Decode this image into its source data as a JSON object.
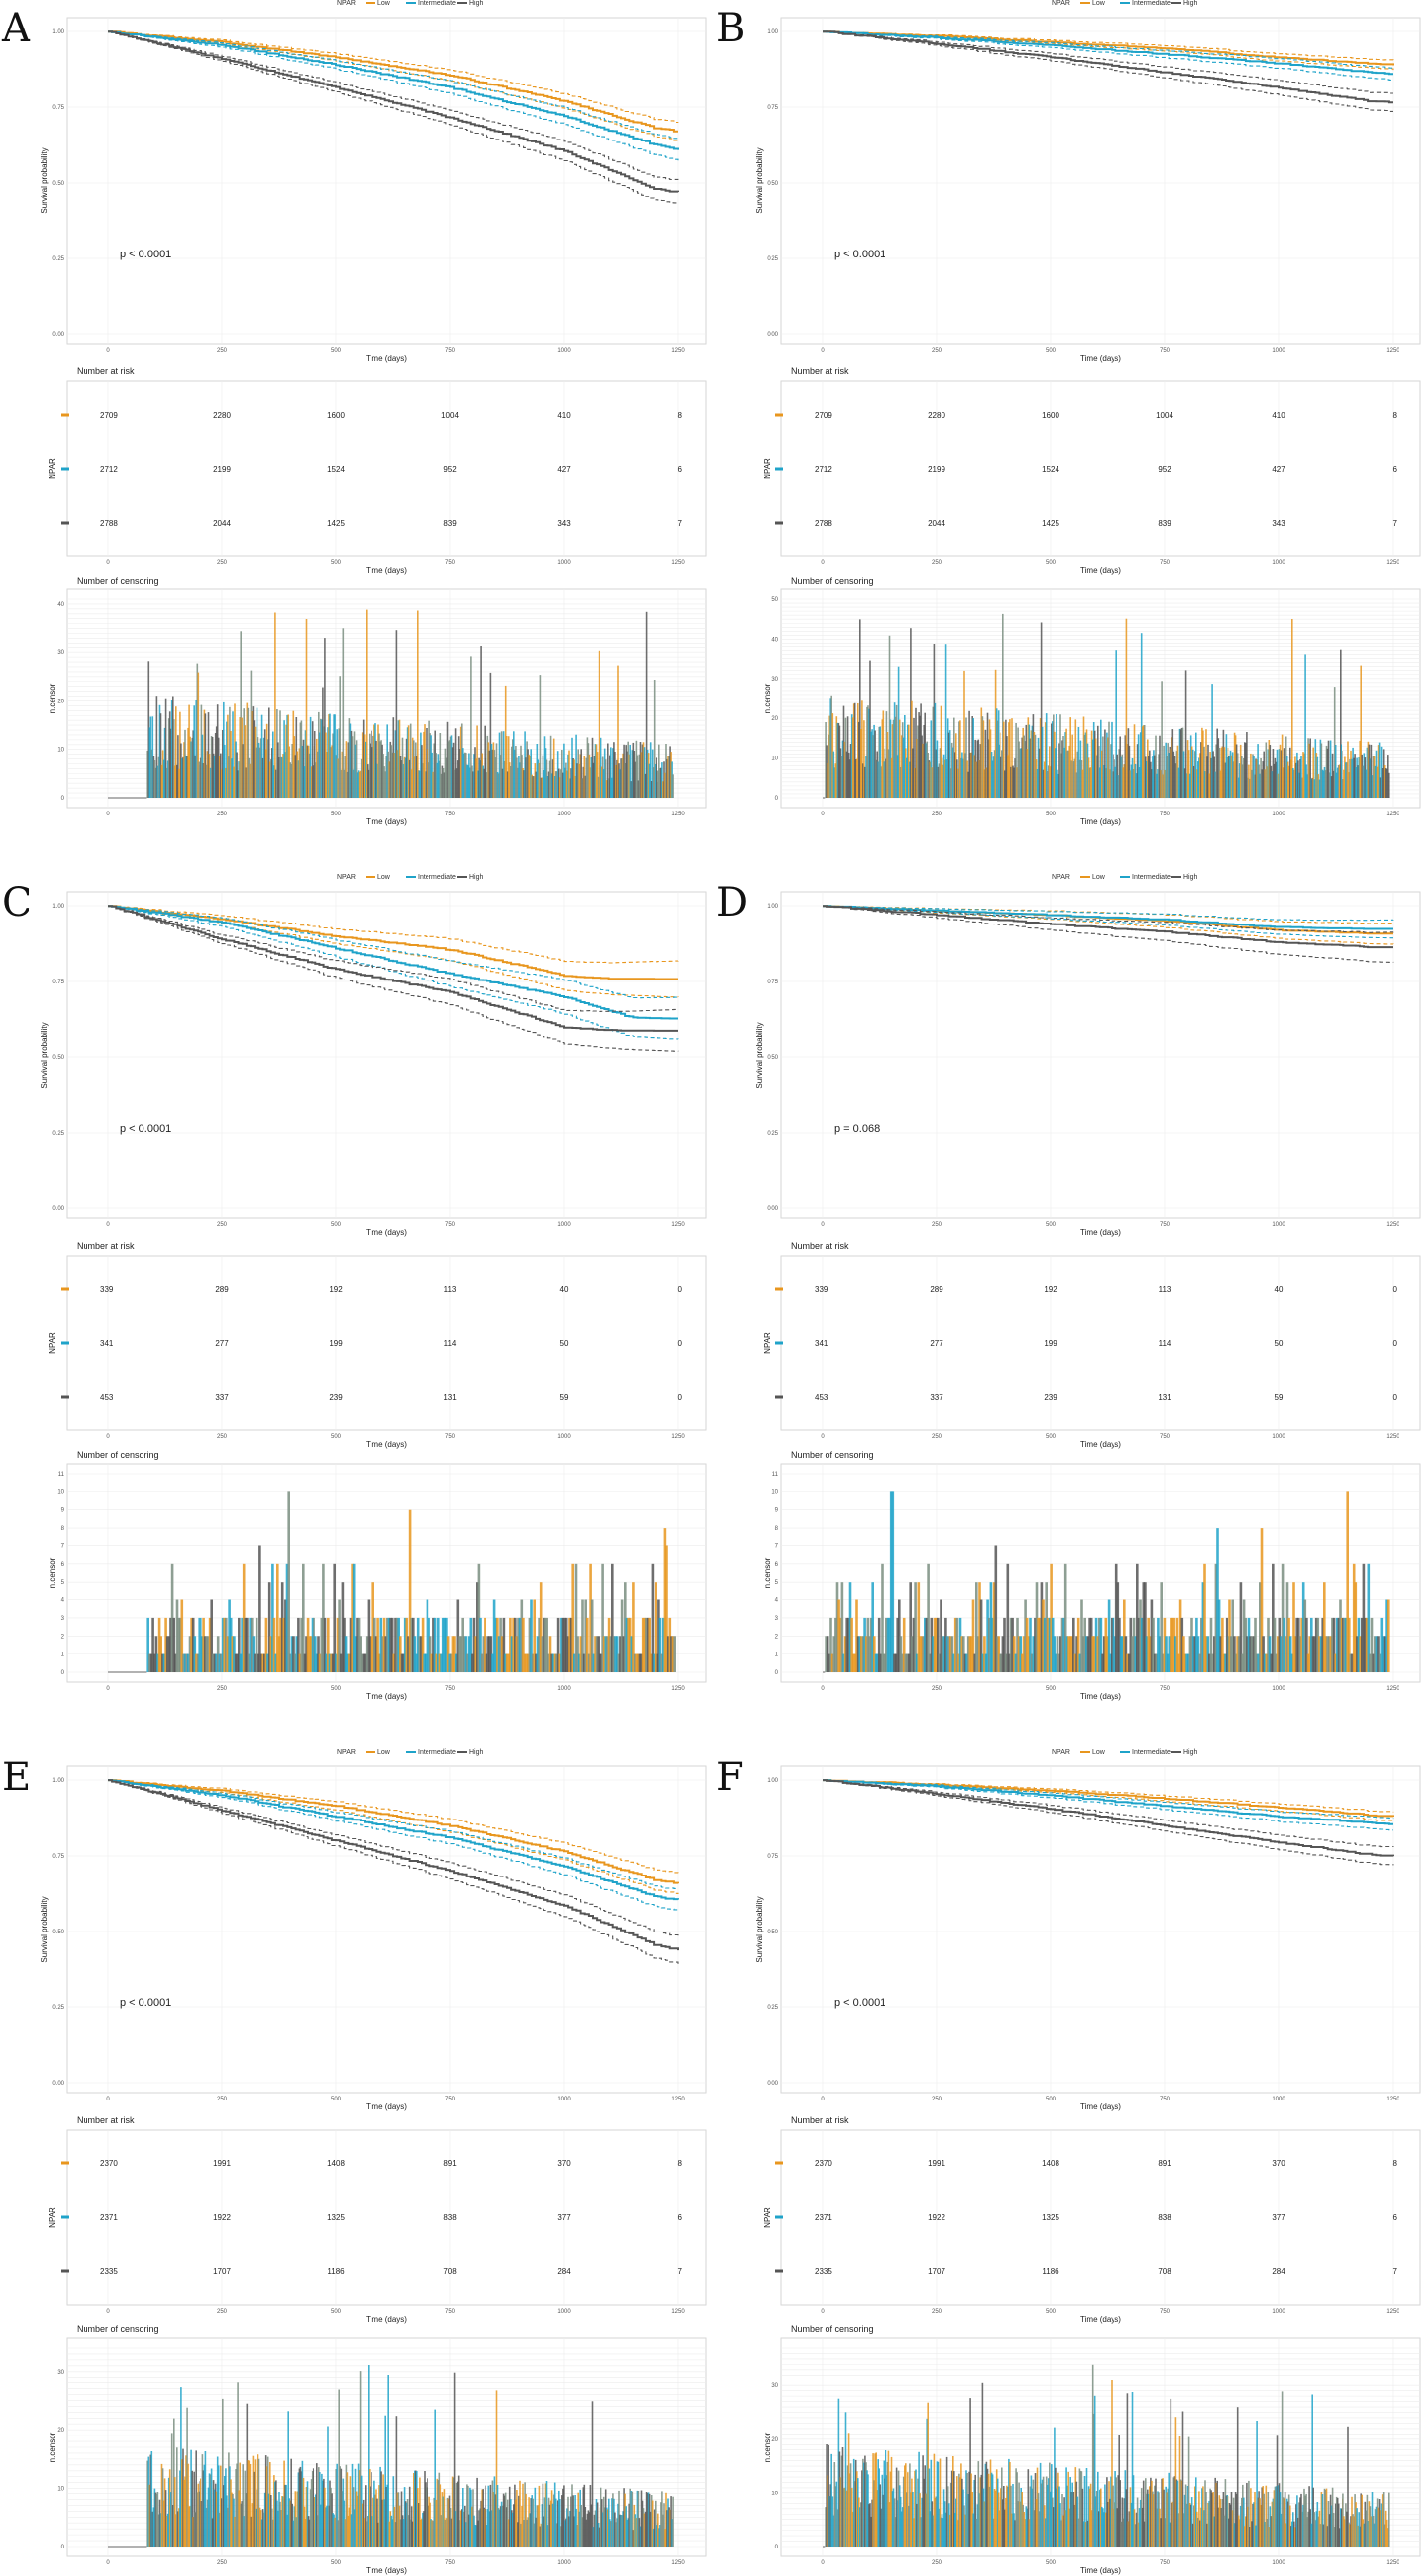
{
  "colors": {
    "low": "#E8961E",
    "intermediate": "#1FA3C9",
    "high": "#555555",
    "grey_bar": "#7A8E80"
  },
  "chart_data": [
    {
      "panel": "A",
      "type": "line",
      "legend": {
        "title": "NPAR",
        "entries": [
          "Low",
          "Intermediate",
          "High"
        ]
      },
      "xlabel": "Time (days)",
      "ylabel": "Survival probability",
      "xticks": [
        "0",
        "250",
        "500",
        "750",
        "1000",
        "1250"
      ],
      "yticks": [
        "0.00",
        "0.25",
        "0.50",
        "0.75",
        "1.00"
      ],
      "xlim": [
        0,
        1250
      ],
      "ylim": [
        0,
        1
      ],
      "pvalue": "p < 0.0001",
      "series": [
        {
          "name": "Low",
          "x": [
            0,
            250,
            500,
            750,
            1000,
            1200,
            1250
          ],
          "y": [
            1.0,
            0.965,
            0.915,
            0.855,
            0.77,
            0.68,
            0.67
          ],
          "ci": 0.03
        },
        {
          "name": "Intermediate",
          "x": [
            0,
            250,
            500,
            750,
            1000,
            1200,
            1250
          ],
          "y": [
            1.0,
            0.955,
            0.89,
            0.815,
            0.72,
            0.625,
            0.61
          ],
          "ci": 0.035
        },
        {
          "name": "High",
          "x": [
            0,
            250,
            500,
            750,
            1000,
            1200,
            1250
          ],
          "y": [
            1.0,
            0.91,
            0.815,
            0.715,
            0.605,
            0.48,
            0.47
          ],
          "ci": 0.04
        }
      ],
      "risk_table": {
        "title": "Number at risk",
        "ylabel": "NPAR",
        "xlabel": "Time (days)",
        "rows": [
          [
            "2709",
            "2280",
            "1600",
            "1004",
            "410",
            "8"
          ],
          [
            "2712",
            "2199",
            "1524",
            "952",
            "427",
            "6"
          ],
          [
            "2788",
            "2044",
            "1425",
            "839",
            "343",
            "7"
          ]
        ]
      },
      "censoring": {
        "title": "Number of censoring",
        "ylabel": "n.censor",
        "xlabel": "Time (days)",
        "ymax": 41,
        "start": 85,
        "yticks": [
          "0",
          "10",
          "20",
          "30",
          "40"
        ]
      }
    },
    {
      "panel": "B",
      "type": "line",
      "legend": {
        "title": "NPAR",
        "entries": [
          "Low",
          "Intermediate",
          "High"
        ]
      },
      "xlabel": "Time (days)",
      "ylabel": "Survival probability",
      "xticks": [
        "0",
        "250",
        "500",
        "750",
        "1000",
        "1250"
      ],
      "yticks": [
        "0.00",
        "0.25",
        "0.50",
        "0.75",
        "1.00"
      ],
      "xlim": [
        0,
        1250
      ],
      "ylim": [
        0,
        1
      ],
      "pvalue": "p < 0.0001",
      "series": [
        {
          "name": "Low",
          "x": [
            0,
            250,
            500,
            750,
            1000,
            1200,
            1250
          ],
          "y": [
            1.0,
            0.985,
            0.965,
            0.945,
            0.915,
            0.895,
            0.89
          ],
          "ci": 0.015
        },
        {
          "name": "Intermediate",
          "x": [
            0,
            250,
            500,
            750,
            1000,
            1200,
            1250
          ],
          "y": [
            1.0,
            0.98,
            0.955,
            0.925,
            0.895,
            0.865,
            0.86
          ],
          "ci": 0.02
        },
        {
          "name": "High",
          "x": [
            0,
            250,
            500,
            750,
            1000,
            1200,
            1250
          ],
          "y": [
            1.0,
            0.96,
            0.915,
            0.865,
            0.815,
            0.77,
            0.765
          ],
          "ci": 0.03
        }
      ],
      "risk_table": {
        "title": "Number at risk",
        "ylabel": "NPAR",
        "xlabel": "Time (days)",
        "rows": [
          [
            "2709",
            "2280",
            "1600",
            "1004",
            "410",
            "8"
          ],
          [
            "2712",
            "2199",
            "1524",
            "952",
            "427",
            "6"
          ],
          [
            "2788",
            "2044",
            "1425",
            "839",
            "343",
            "7"
          ]
        ]
      },
      "censoring": {
        "title": "Number of censoring",
        "ylabel": "n.censor",
        "xlabel": "Time (days)",
        "ymax": 50,
        "start": 5,
        "yticks": [
          "0",
          "10",
          "20",
          "30",
          "40",
          "50"
        ]
      }
    },
    {
      "panel": "C",
      "type": "line",
      "legend": {
        "title": "NPAR",
        "entries": [
          "Low",
          "Intermediate",
          "High"
        ]
      },
      "xlabel": "Time (days)",
      "ylabel": "Survival probability",
      "xticks": [
        "0",
        "250",
        "500",
        "750",
        "1000",
        "1250"
      ],
      "yticks": [
        "0.00",
        "0.25",
        "0.50",
        "0.75",
        "1.00"
      ],
      "xlim": [
        0,
        1250
      ],
      "ylim": [
        0,
        1
      ],
      "pvalue": "p < 0.0001",
      "series": [
        {
          "name": "Low",
          "x": [
            0,
            250,
            500,
            750,
            1000,
            1100,
            1250
          ],
          "y": [
            1.0,
            0.955,
            0.9,
            0.855,
            0.77,
            0.76,
            0.76
          ],
          "ci": 0.06
        },
        {
          "name": "Intermediate",
          "x": [
            0,
            250,
            500,
            750,
            1000,
            1150,
            1250
          ],
          "y": [
            1.0,
            0.945,
            0.86,
            0.775,
            0.7,
            0.63,
            0.63
          ],
          "ci": 0.07
        },
        {
          "name": "High",
          "x": [
            0,
            250,
            500,
            750,
            1000,
            1100,
            1250
          ],
          "y": [
            1.0,
            0.89,
            0.79,
            0.715,
            0.6,
            0.59,
            0.59
          ],
          "ci": 0.07
        }
      ],
      "risk_table": {
        "title": "Number at risk",
        "ylabel": "NPAR",
        "xlabel": "Time (days)",
        "rows": [
          [
            "339",
            "289",
            "192",
            "113",
            "40",
            "0"
          ],
          [
            "341",
            "277",
            "199",
            "114",
            "50",
            "0"
          ],
          [
            "453",
            "337",
            "239",
            "131",
            "59",
            "0"
          ]
        ]
      },
      "censoring": {
        "title": "Number of censoring",
        "ylabel": "n.censor",
        "xlabel": "Time (days)",
        "ymax": 11,
        "start": 85,
        "yticks": [
          "0",
          "1",
          "2",
          "3",
          "4",
          "5",
          "6",
          "7",
          "8",
          "9",
          "10",
          "11"
        ]
      }
    },
    {
      "panel": "D",
      "type": "line",
      "legend": {
        "title": "NPAR",
        "entries": [
          "Low",
          "Intermediate",
          "High"
        ]
      },
      "xlabel": "Time (days)",
      "ylabel": "Survival probability",
      "xticks": [
        "0",
        "250",
        "500",
        "750",
        "1000",
        "1250"
      ],
      "yticks": [
        "0.00",
        "0.25",
        "0.50",
        "0.75",
        "1.00"
      ],
      "xlim": [
        0,
        1250
      ],
      "ylim": [
        0,
        1
      ],
      "pvalue": "p = 0.068",
      "series": [
        {
          "name": "Low",
          "x": [
            0,
            250,
            500,
            750,
            1000,
            1200,
            1250
          ],
          "y": [
            1.0,
            0.985,
            0.97,
            0.95,
            0.92,
            0.91,
            0.91
          ],
          "ci": 0.035
        },
        {
          "name": "Intermediate",
          "x": [
            0,
            250,
            500,
            750,
            1000,
            1200,
            1250
          ],
          "y": [
            1.0,
            0.985,
            0.97,
            0.955,
            0.93,
            0.925,
            0.925
          ],
          "ci": 0.03
        },
        {
          "name": "High",
          "x": [
            0,
            250,
            500,
            750,
            1000,
            1200,
            1250
          ],
          "y": [
            1.0,
            0.97,
            0.94,
            0.915,
            0.88,
            0.865,
            0.865
          ],
          "ci": 0.05
        }
      ],
      "risk_table": {
        "title": "Number at risk",
        "ylabel": "NPAR",
        "xlabel": "Time (days)",
        "rows": [
          [
            "339",
            "289",
            "192",
            "113",
            "40",
            "0"
          ],
          [
            "341",
            "277",
            "199",
            "114",
            "50",
            "0"
          ],
          [
            "453",
            "337",
            "239",
            "131",
            "59",
            "0"
          ]
        ]
      },
      "censoring": {
        "title": "Number of censoring",
        "ylabel": "n.censor",
        "xlabel": "Time (days)",
        "ymax": 11,
        "start": 5,
        "yticks": [
          "0",
          "1",
          "2",
          "3",
          "4",
          "5",
          "6",
          "7",
          "8",
          "9",
          "10",
          "11"
        ]
      }
    },
    {
      "panel": "E",
      "type": "line",
      "legend": {
        "title": "NPAR",
        "entries": [
          "Low",
          "Intermediate",
          "High"
        ]
      },
      "xlabel": "Time (days)",
      "ylabel": "Survival probability",
      "xticks": [
        "0",
        "250",
        "500",
        "750",
        "1000",
        "1250"
      ],
      "yticks": [
        "0.00",
        "0.25",
        "0.50",
        "0.75",
        "1.00"
      ],
      "xlim": [
        0,
        1250
      ],
      "ylim": [
        0,
        1
      ],
      "pvalue": "p < 0.0001",
      "series": [
        {
          "name": "Low",
          "x": [
            0,
            250,
            500,
            750,
            1000,
            1200,
            1250
          ],
          "y": [
            1.0,
            0.965,
            0.915,
            0.85,
            0.765,
            0.67,
            0.66
          ],
          "ci": 0.035
        },
        {
          "name": "Intermediate",
          "x": [
            0,
            250,
            500,
            750,
            1000,
            1200,
            1250
          ],
          "y": [
            1.0,
            0.95,
            0.88,
            0.81,
            0.715,
            0.615,
            0.605
          ],
          "ci": 0.035
        },
        {
          "name": "High",
          "x": [
            0,
            250,
            500,
            750,
            1000,
            1200,
            1250
          ],
          "y": [
            1.0,
            0.9,
            0.8,
            0.7,
            0.585,
            0.455,
            0.44
          ],
          "ci": 0.045
        }
      ],
      "risk_table": {
        "title": "Number at risk",
        "ylabel": "NPAR",
        "xlabel": "Time (days)",
        "rows": [
          [
            "2370",
            "1991",
            "1408",
            "891",
            "370",
            "8"
          ],
          [
            "2371",
            "1922",
            "1325",
            "838",
            "377",
            "6"
          ],
          [
            "2335",
            "1707",
            "1186",
            "708",
            "284",
            "7"
          ]
        ]
      },
      "censoring": {
        "title": "Number of censoring",
        "ylabel": "n.censor",
        "xlabel": "Time (days)",
        "ymax": 34,
        "start": 85,
        "yticks": [
          "0",
          "10",
          "20",
          "30"
        ]
      }
    },
    {
      "panel": "F",
      "type": "line",
      "legend": {
        "title": "NPAR",
        "entries": [
          "Low",
          "Intermediate",
          "High"
        ]
      },
      "xlabel": "Time (days)",
      "ylabel": "Survival probability",
      "xticks": [
        "0",
        "250",
        "500",
        "750",
        "1000",
        "1250"
      ],
      "yticks": [
        "0.00",
        "0.25",
        "0.50",
        "0.75",
        "1.00"
      ],
      "xlim": [
        0,
        1250
      ],
      "ylim": [
        0,
        1
      ],
      "pvalue": "p < 0.0001",
      "series": [
        {
          "name": "Low",
          "x": [
            0,
            250,
            500,
            750,
            1000,
            1200,
            1250
          ],
          "y": [
            1.0,
            0.985,
            0.965,
            0.94,
            0.91,
            0.885,
            0.88
          ],
          "ci": 0.015
        },
        {
          "name": "Intermediate",
          "x": [
            0,
            250,
            500,
            750,
            1000,
            1200,
            1250
          ],
          "y": [
            1.0,
            0.98,
            0.95,
            0.915,
            0.88,
            0.86,
            0.855
          ],
          "ci": 0.02
        },
        {
          "name": "High",
          "x": [
            0,
            250,
            500,
            750,
            1000,
            1200,
            1250
          ],
          "y": [
            1.0,
            0.955,
            0.905,
            0.85,
            0.795,
            0.755,
            0.75
          ],
          "ci": 0.03
        }
      ],
      "risk_table": {
        "title": "Number at risk",
        "ylabel": "NPAR",
        "xlabel": "Time (days)",
        "rows": [
          [
            "2370",
            "1991",
            "1408",
            "891",
            "370",
            "8"
          ],
          [
            "2371",
            "1922",
            "1325",
            "838",
            "377",
            "6"
          ],
          [
            "2335",
            "1707",
            "1186",
            "708",
            "284",
            "7"
          ]
        ]
      },
      "censoring": {
        "title": "Number of censoring",
        "ylabel": "n.censor",
        "xlabel": "Time (days)",
        "ymax": 37,
        "start": 5,
        "yticks": [
          "0",
          "10",
          "20",
          "30"
        ]
      }
    }
  ]
}
